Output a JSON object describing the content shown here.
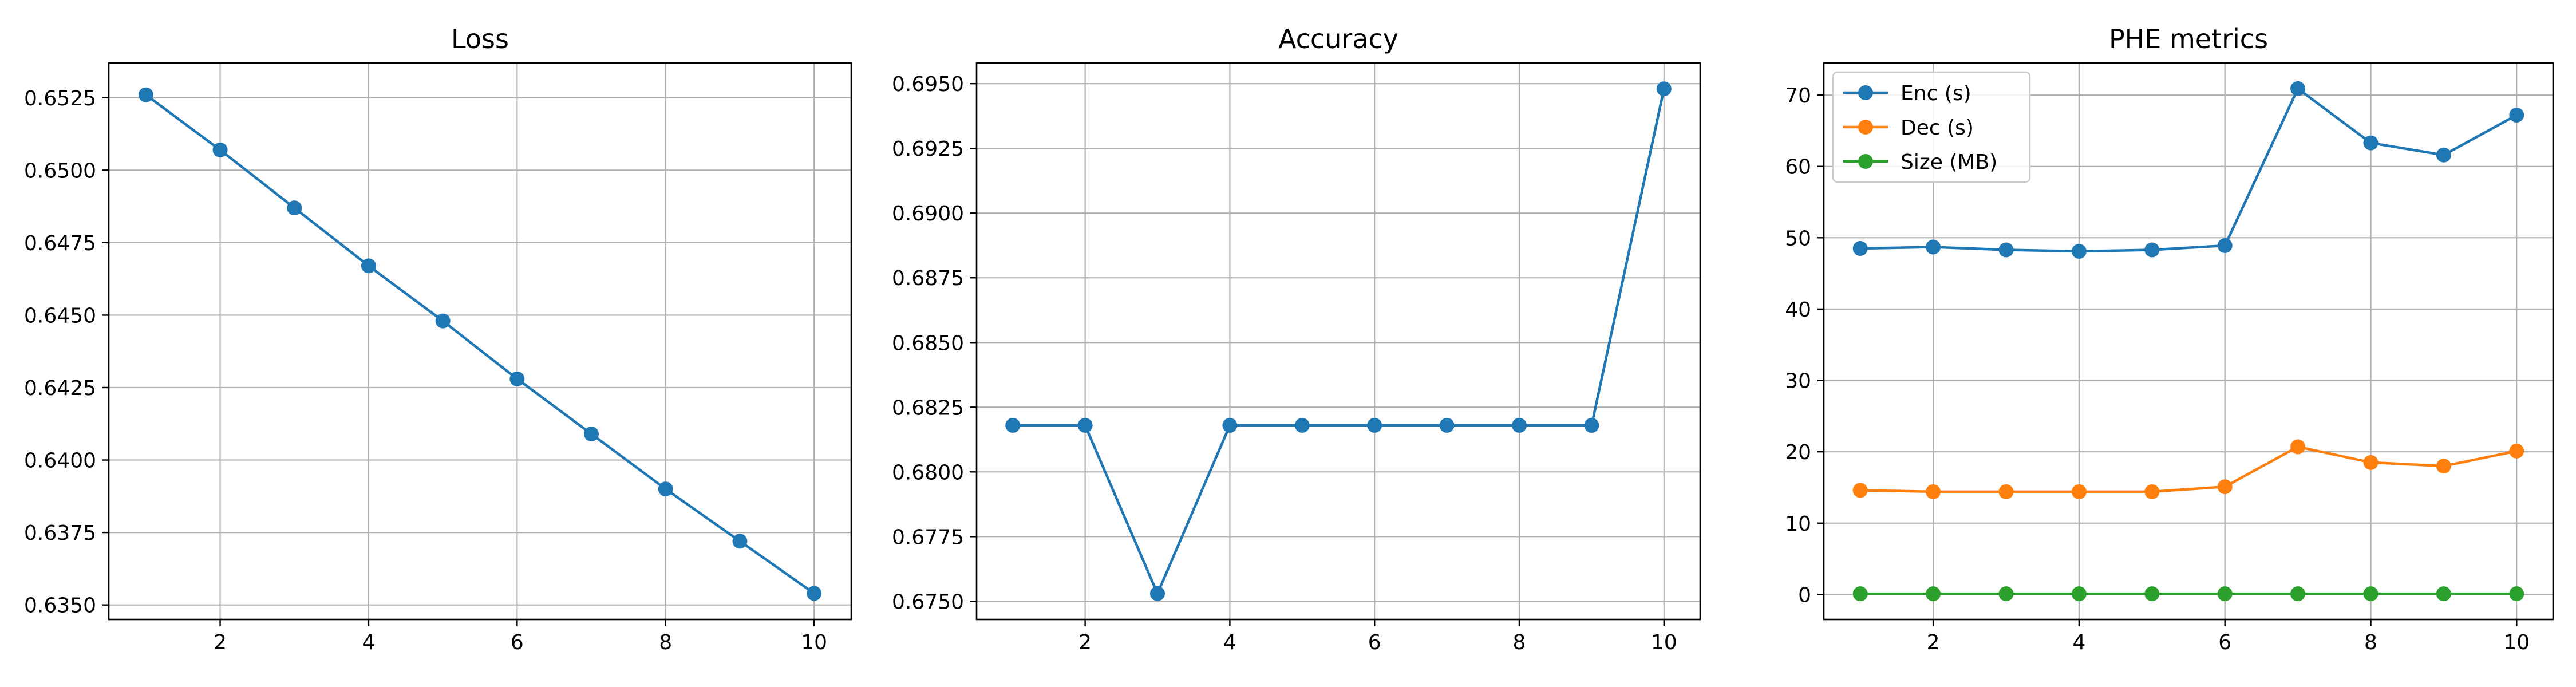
{
  "figure": {
    "background": "#ffffff"
  },
  "chart_data": [
    {
      "type": "line",
      "title": "Loss",
      "xlabel": "",
      "ylabel": "",
      "xlim": [
        0.5,
        10.5
      ],
      "ylim": [
        0.6345,
        0.6537
      ],
      "grid": true,
      "x_ticks": [
        2,
        4,
        6,
        8,
        10
      ],
      "x_tick_labels": [
        "2",
        "4",
        "6",
        "8",
        "10"
      ],
      "y_ticks": [
        0.635,
        0.6375,
        0.64,
        0.6425,
        0.645,
        0.6475,
        0.65,
        0.6525
      ],
      "y_tick_labels": [
        "0.6350",
        "0.6375",
        "0.6400",
        "0.6425",
        "0.6450",
        "0.6475",
        "0.6500",
        "0.6525"
      ],
      "x": [
        1,
        2,
        3,
        4,
        5,
        6,
        7,
        8,
        9,
        10
      ],
      "series": [
        {
          "values": [
            0.6526,
            0.6507,
            0.6487,
            0.6467,
            0.6448,
            0.6428,
            0.6409,
            0.639,
            0.6372,
            0.6354
          ],
          "color": "#1f77b4",
          "marker": "circle"
        }
      ]
    },
    {
      "type": "line",
      "title": "Accuracy",
      "xlabel": "",
      "ylabel": "",
      "xlim": [
        0.5,
        10.5
      ],
      "ylim": [
        0.6743,
        0.6958
      ],
      "grid": true,
      "x_ticks": [
        2,
        4,
        6,
        8,
        10
      ],
      "x_tick_labels": [
        "2",
        "4",
        "6",
        "8",
        "10"
      ],
      "y_ticks": [
        0.675,
        0.6775,
        0.68,
        0.6825,
        0.685,
        0.6875,
        0.69,
        0.6925,
        0.695
      ],
      "y_tick_labels": [
        "0.6750",
        "0.6775",
        "0.6800",
        "0.6825",
        "0.6850",
        "0.6875",
        "0.6900",
        "0.6925",
        "0.6950"
      ],
      "x": [
        1,
        2,
        3,
        4,
        5,
        6,
        7,
        8,
        9,
        10
      ],
      "series": [
        {
          "values": [
            0.6818,
            0.6818,
            0.6753,
            0.6818,
            0.6818,
            0.6818,
            0.6818,
            0.6818,
            0.6818,
            0.6948
          ],
          "color": "#1f77b4",
          "marker": "circle"
        }
      ]
    },
    {
      "type": "line",
      "title": "PHE metrics",
      "xlabel": "",
      "ylabel": "",
      "xlim": [
        0.5,
        10.5
      ],
      "ylim": [
        -3.5,
        74.5
      ],
      "grid": true,
      "legend": "top-left",
      "x_ticks": [
        2,
        4,
        6,
        8,
        10
      ],
      "x_tick_labels": [
        "2",
        "4",
        "6",
        "8",
        "10"
      ],
      "y_ticks": [
        0,
        10,
        20,
        30,
        40,
        50,
        60,
        70
      ],
      "y_tick_labels": [
        "0",
        "10",
        "20",
        "30",
        "40",
        "50",
        "60",
        "70"
      ],
      "x": [
        1,
        2,
        3,
        4,
        5,
        6,
        7,
        8,
        9,
        10
      ],
      "series": [
        {
          "name": "Enc (s)",
          "values": [
            48.5,
            48.7,
            48.3,
            48.1,
            48.3,
            48.9,
            70.9,
            63.3,
            61.6,
            67.2
          ],
          "color": "#1f77b4",
          "marker": "circle"
        },
        {
          "name": "Dec (s)",
          "values": [
            14.6,
            14.4,
            14.4,
            14.4,
            14.4,
            15.1,
            20.7,
            18.5,
            18.0,
            20.1
          ],
          "color": "#ff7f0e",
          "marker": "circle"
        },
        {
          "name": "Size (MB)",
          "values": [
            0.1,
            0.1,
            0.1,
            0.1,
            0.1,
            0.1,
            0.1,
            0.1,
            0.1,
            0.1
          ],
          "color": "#2ca02c",
          "marker": "circle"
        }
      ]
    }
  ]
}
